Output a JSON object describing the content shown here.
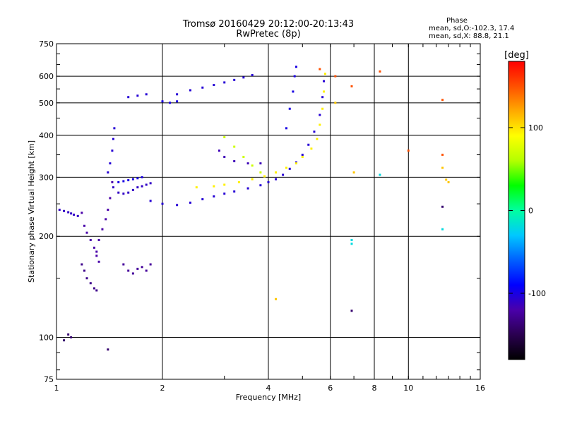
{
  "chart_data": {
    "type": "scatter",
    "title": "Tromsø 20160429 20:12:00-20:13:43",
    "subtitle": "RwPretec (8p)",
    "xlabel": "Frequency [MHz]",
    "ylabel": "Stationary phase Virtual Height [km]",
    "x_scale": "log",
    "y_scale": "log",
    "xlim": [
      1,
      16
    ],
    "ylim": [
      75,
      750
    ],
    "x_ticks": [
      1,
      2,
      4,
      6,
      8,
      10,
      16
    ],
    "x_tick_labels": [
      "1",
      "2",
      "4",
      "6",
      "8",
      "10",
      "16"
    ],
    "y_ticks": [
      75,
      100,
      200,
      300,
      400,
      500,
      600,
      750
    ],
    "y_tick_labels": [
      "75",
      "100",
      "200",
      "300",
      "400",
      "500",
      "600",
      "750"
    ],
    "x_gridlines": [
      2,
      4,
      6,
      8,
      10
    ],
    "y_gridlines": [
      100,
      200,
      300,
      400,
      500,
      600
    ],
    "grid": true,
    "stats": {
      "heading": "Phase",
      "o_line": "mean, sd,O:-102.3, 17.4",
      "x_line": "mean, sd,X: 88.8, 21.1"
    },
    "colorbar": {
      "label": "[deg]",
      "range": [
        -180,
        180
      ],
      "ticks": [
        100,
        0,
        -100
      ],
      "tick_labels": [
        "100",
        "0",
        "-100"
      ],
      "colors": [
        "#000000",
        "#2a0050",
        "#4a00aa",
        "#0000ff",
        "#0060ff",
        "#00c8ff",
        "#00ffa0",
        "#00ff00",
        "#b4ff00",
        "#ffff00",
        "#ffaa00",
        "#ff5000",
        "#ff0000"
      ]
    },
    "series": [
      {
        "values": [
          [
            1.02,
            240
          ],
          [
            1.05,
            238
          ],
          [
            1.08,
            236
          ],
          [
            1.1,
            234
          ],
          [
            1.12,
            232
          ],
          [
            1.15,
            230
          ]
        ],
        "phase": -110
      },
      {
        "values": [
          [
            1.18,
            235
          ],
          [
            1.2,
            215
          ],
          [
            1.22,
            205
          ],
          [
            1.25,
            195
          ],
          [
            1.28,
            185
          ],
          [
            1.3,
            175
          ],
          [
            1.32,
            168
          ]
        ],
        "phase": -120
      },
      {
        "values": [
          [
            1.18,
            165
          ],
          [
            1.2,
            158
          ],
          [
            1.22,
            150
          ],
          [
            1.25,
            145
          ],
          [
            1.28,
            140
          ],
          [
            1.3,
            138
          ]
        ],
        "phase": -130
      },
      {
        "values": [
          [
            1.3,
            180
          ],
          [
            1.32,
            195
          ],
          [
            1.35,
            210
          ],
          [
            1.38,
            225
          ],
          [
            1.4,
            240
          ],
          [
            1.42,
            260
          ],
          [
            1.44,
            290
          ]
        ],
        "phase": -120
      },
      {
        "values": [
          [
            1.4,
            310
          ],
          [
            1.42,
            330
          ],
          [
            1.44,
            360
          ],
          [
            1.45,
            390
          ],
          [
            1.46,
            420
          ]
        ],
        "phase": -105
      },
      {
        "values": [
          [
            1.45,
            280
          ],
          [
            1.5,
            270
          ],
          [
            1.55,
            268
          ],
          [
            1.6,
            270
          ],
          [
            1.65,
            275
          ],
          [
            1.7,
            280
          ],
          [
            1.75,
            282
          ],
          [
            1.8,
            285
          ],
          [
            1.85,
            288
          ]
        ],
        "phase": -110
      },
      {
        "values": [
          [
            1.5,
            290
          ],
          [
            1.55,
            292
          ],
          [
            1.6,
            294
          ],
          [
            1.65,
            296
          ],
          [
            1.7,
            298
          ],
          [
            1.75,
            300
          ]
        ],
        "phase": -100
      },
      {
        "values": [
          [
            1.55,
            165
          ],
          [
            1.6,
            158
          ],
          [
            1.65,
            155
          ],
          [
            1.7,
            160
          ],
          [
            1.75,
            162
          ],
          [
            1.8,
            158
          ],
          [
            1.85,
            165
          ]
        ],
        "phase": -125
      },
      {
        "values": [
          [
            1.85,
            255
          ],
          [
            2.0,
            250
          ],
          [
            2.2,
            248
          ],
          [
            2.4,
            252
          ],
          [
            2.6,
            258
          ],
          [
            2.8,
            263
          ],
          [
            3.0,
            268
          ],
          [
            3.2,
            272
          ],
          [
            3.5,
            278
          ],
          [
            3.8,
            284
          ],
          [
            4.0,
            290
          ],
          [
            4.2,
            296
          ],
          [
            4.4,
            305
          ],
          [
            4.6,
            318
          ],
          [
            4.8,
            332
          ],
          [
            5.0,
            350
          ],
          [
            5.2,
            375
          ],
          [
            5.4,
            410
          ],
          [
            5.6,
            460
          ],
          [
            5.7,
            520
          ],
          [
            5.75,
            580
          ]
        ],
        "phase": -105
      },
      {
        "values": [
          [
            2.5,
            280
          ],
          [
            2.8,
            282
          ],
          [
            3.0,
            285
          ],
          [
            3.3,
            290
          ],
          [
            3.6,
            296
          ],
          [
            3.9,
            302
          ],
          [
            4.2,
            310
          ],
          [
            4.5,
            320
          ],
          [
            4.8,
            330
          ],
          [
            5.0,
            345
          ],
          [
            5.3,
            365
          ],
          [
            5.5,
            390
          ],
          [
            5.6,
            430
          ],
          [
            5.7,
            480
          ],
          [
            5.75,
            540
          ],
          [
            5.8,
            610
          ]
        ],
        "phase": 95
      },
      {
        "values": [
          [
            3.0,
            395
          ],
          [
            3.2,
            370
          ],
          [
            3.4,
            345
          ],
          [
            3.6,
            325
          ],
          [
            3.8,
            310
          ]
        ],
        "phase": 70
      },
      {
        "values": [
          [
            2.9,
            360
          ],
          [
            3.0,
            345
          ],
          [
            3.2,
            335
          ],
          [
            3.5,
            330
          ],
          [
            3.8,
            330
          ]
        ],
        "phase": -115
      },
      {
        "values": [
          [
            4.5,
            420
          ],
          [
            4.6,
            480
          ],
          [
            4.7,
            540
          ],
          [
            4.75,
            600
          ],
          [
            4.8,
            640
          ]
        ],
        "phase": -100
      },
      {
        "values": [
          [
            1.6,
            520
          ],
          [
            1.7,
            525
          ],
          [
            1.8,
            530
          ]
        ],
        "phase": -105
      },
      {
        "values": [
          [
            2.0,
            505
          ],
          [
            2.1,
            500
          ],
          [
            2.2,
            505
          ]
        ],
        "phase": -100
      },
      {
        "values": [
          [
            2.2,
            530
          ],
          [
            2.4,
            545
          ],
          [
            2.6,
            555
          ],
          [
            2.8,
            565
          ],
          [
            3.0,
            575
          ],
          [
            3.2,
            585
          ],
          [
            3.4,
            595
          ],
          [
            3.6,
            605
          ]
        ],
        "phase": -105
      },
      {
        "values": [
          [
            5.6,
            630
          ],
          [
            6.2,
            600
          ],
          [
            6.9,
            560
          ],
          [
            8.3,
            620
          ],
          [
            10.0,
            360
          ],
          [
            12.5,
            510
          ],
          [
            12.5,
            350
          ]
        ],
        "phase": 150
      },
      {
        "values": [
          [
            4.2,
            130
          ],
          [
            6.2,
            500
          ],
          [
            7.0,
            310
          ],
          [
            12.5,
            320
          ],
          [
            12.8,
            295
          ],
          [
            13.0,
            290
          ]
        ],
        "phase": 110
      },
      {
        "values": [
          [
            6.9,
            195
          ],
          [
            6.9,
            190
          ],
          [
            12.5,
            210
          ],
          [
            8.3,
            305
          ]
        ],
        "phase": -20
      },
      {
        "values": [
          [
            1.05,
            98
          ],
          [
            1.08,
            102
          ],
          [
            1.1,
            100
          ],
          [
            1.4,
            92
          ],
          [
            6.9,
            120
          ],
          [
            12.5,
            245
          ]
        ],
        "phase": -140
      }
    ]
  }
}
